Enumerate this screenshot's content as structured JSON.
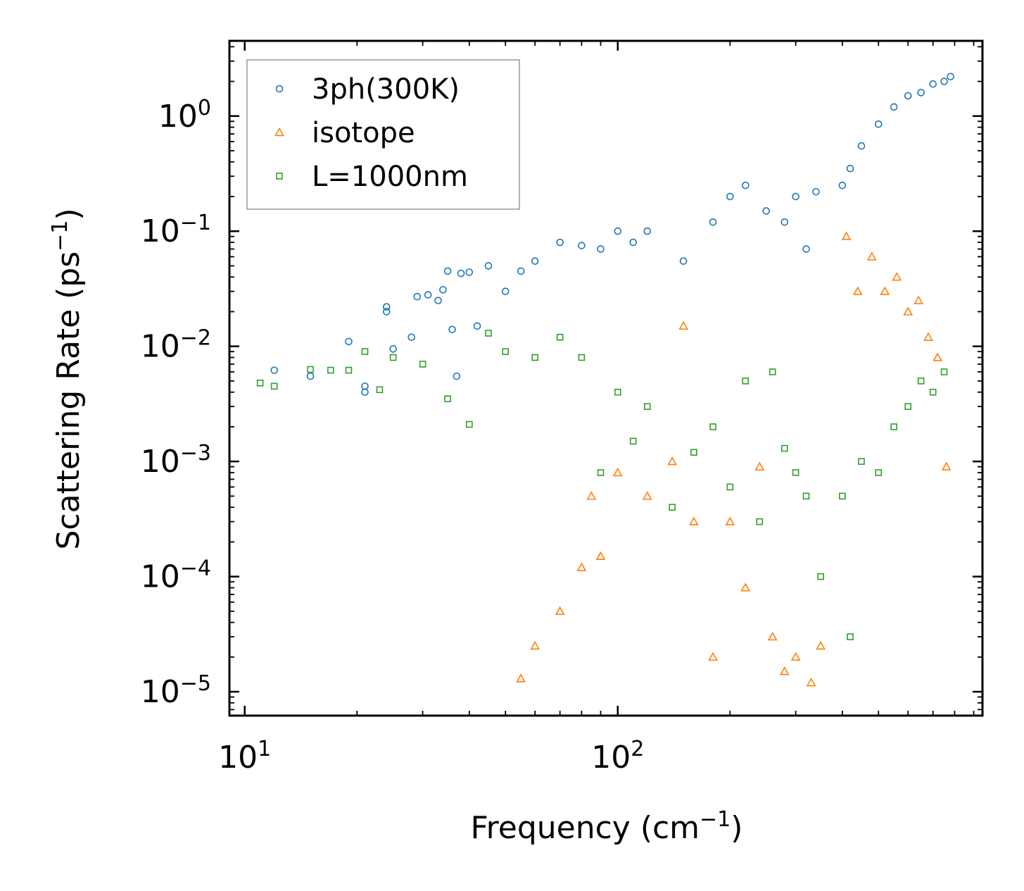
{
  "chart_data": {
    "type": "scatter",
    "title": "",
    "xlabel": "Frequency (cm",
    "xlabel_sup": "−1",
    "xlabel_suffix": ")",
    "ylabel": "Scattering Rate (ps",
    "ylabel_sup": "−1",
    "ylabel_suffix": ")",
    "x_scale": "log",
    "y_scale": "log",
    "xlim": [
      9.1,
      950
    ],
    "ylim": [
      6.2e-06,
      4.5
    ],
    "x_ticks": [
      {
        "value": 10,
        "base": "10",
        "exp": "1"
      },
      {
        "value": 100,
        "base": "10",
        "exp": "2"
      }
    ],
    "y_ticks": [
      {
        "value": 1,
        "base": "10",
        "exp": "0"
      },
      {
        "value": 0.1,
        "base": "10",
        "exp": "−1"
      },
      {
        "value": 0.01,
        "base": "10",
        "exp": "−2"
      },
      {
        "value": 0.001,
        "base": "10",
        "exp": "−3"
      },
      {
        "value": 0.0001,
        "base": "10",
        "exp": "−4"
      },
      {
        "value": 1e-05,
        "base": "10",
        "exp": "−5"
      }
    ],
    "grid": false,
    "legend_position": "top-left",
    "series": [
      {
        "name": "3ph(300K)",
        "marker": "circle",
        "color": "#1f77b4",
        "points": [
          [
            12,
            0.0062
          ],
          [
            15,
            0.0055
          ],
          [
            19,
            0.011
          ],
          [
            21,
            0.0045
          ],
          [
            21,
            0.004
          ],
          [
            24,
            0.02
          ],
          [
            24,
            0.022
          ],
          [
            25,
            0.0095
          ],
          [
            28,
            0.012
          ],
          [
            29,
            0.027
          ],
          [
            31,
            0.028
          ],
          [
            33,
            0.025
          ],
          [
            34,
            0.031
          ],
          [
            35,
            0.045
          ],
          [
            36,
            0.014
          ],
          [
            37,
            0.0055
          ],
          [
            38,
            0.043
          ],
          [
            40,
            0.044
          ],
          [
            42,
            0.015
          ],
          [
            45,
            0.05
          ],
          [
            50,
            0.03
          ],
          [
            55,
            0.045
          ],
          [
            60,
            0.055
          ],
          [
            70,
            0.08
          ],
          [
            80,
            0.075
          ],
          [
            90,
            0.07
          ],
          [
            100,
            0.1
          ],
          [
            110,
            0.08
          ],
          [
            120,
            0.1
          ],
          [
            150,
            0.055
          ],
          [
            180,
            0.12
          ],
          [
            200,
            0.2
          ],
          [
            220,
            0.25
          ],
          [
            250,
            0.15
          ],
          [
            280,
            0.12
          ],
          [
            300,
            0.2
          ],
          [
            320,
            0.07
          ],
          [
            340,
            0.22
          ],
          [
            400,
            0.25
          ],
          [
            420,
            0.35
          ],
          [
            450,
            0.55
          ],
          [
            500,
            0.85
          ],
          [
            550,
            1.2
          ],
          [
            600,
            1.5
          ],
          [
            650,
            1.6
          ],
          [
            700,
            1.9
          ],
          [
            750,
            2.0
          ],
          [
            780,
            2.2
          ]
        ]
      },
      {
        "name": "isotope",
        "marker": "triangle",
        "color": "#ff7f0e",
        "points": [
          [
            55,
            1.3e-05
          ],
          [
            60,
            2.5e-05
          ],
          [
            70,
            5e-05
          ],
          [
            80,
            0.00012
          ],
          [
            85,
            0.0005
          ],
          [
            90,
            0.00015
          ],
          [
            100,
            0.0008
          ],
          [
            120,
            0.0005
          ],
          [
            140,
            0.001
          ],
          [
            150,
            0.015
          ],
          [
            160,
            0.0003
          ],
          [
            180,
            2e-05
          ],
          [
            200,
            0.0003
          ],
          [
            220,
            8e-05
          ],
          [
            240,
            0.0009
          ],
          [
            260,
            3e-05
          ],
          [
            280,
            1.5e-05
          ],
          [
            300,
            2e-05
          ],
          [
            330,
            1.2e-05
          ],
          [
            350,
            2.5e-05
          ],
          [
            410,
            0.09
          ],
          [
            440,
            0.03
          ],
          [
            480,
            0.06
          ],
          [
            520,
            0.03
          ],
          [
            560,
            0.04
          ],
          [
            600,
            0.02
          ],
          [
            640,
            0.025
          ],
          [
            680,
            0.012
          ],
          [
            720,
            0.008
          ],
          [
            760,
            0.0009
          ]
        ]
      },
      {
        "name": "L=1000nm",
        "marker": "square",
        "color": "#2ca02c",
        "points": [
          [
            11,
            0.0048
          ],
          [
            12,
            0.0045
          ],
          [
            15,
            0.0063
          ],
          [
            17,
            0.0062
          ],
          [
            19,
            0.0062
          ],
          [
            21,
            0.009
          ],
          [
            23,
            0.0042
          ],
          [
            25,
            0.008
          ],
          [
            30,
            0.007
          ],
          [
            35,
            0.0035
          ],
          [
            40,
            0.0021
          ],
          [
            45,
            0.013
          ],
          [
            50,
            0.009
          ],
          [
            60,
            0.008
          ],
          [
            70,
            0.012
          ],
          [
            80,
            0.008
          ],
          [
            90,
            0.0008
          ],
          [
            100,
            0.004
          ],
          [
            110,
            0.0015
          ],
          [
            120,
            0.003
          ],
          [
            140,
            0.0004
          ],
          [
            160,
            0.0012
          ],
          [
            180,
            0.002
          ],
          [
            200,
            0.0006
          ],
          [
            220,
            0.005
          ],
          [
            240,
            0.0003
          ],
          [
            260,
            0.006
          ],
          [
            280,
            0.0013
          ],
          [
            300,
            0.0008
          ],
          [
            320,
            0.0005
          ],
          [
            350,
            0.0001
          ],
          [
            400,
            0.0005
          ],
          [
            420,
            3e-05
          ],
          [
            450,
            0.001
          ],
          [
            500,
            0.0008
          ],
          [
            550,
            0.002
          ],
          [
            600,
            0.003
          ],
          [
            650,
            0.005
          ],
          [
            700,
            0.004
          ],
          [
            750,
            0.006
          ]
        ]
      }
    ]
  }
}
